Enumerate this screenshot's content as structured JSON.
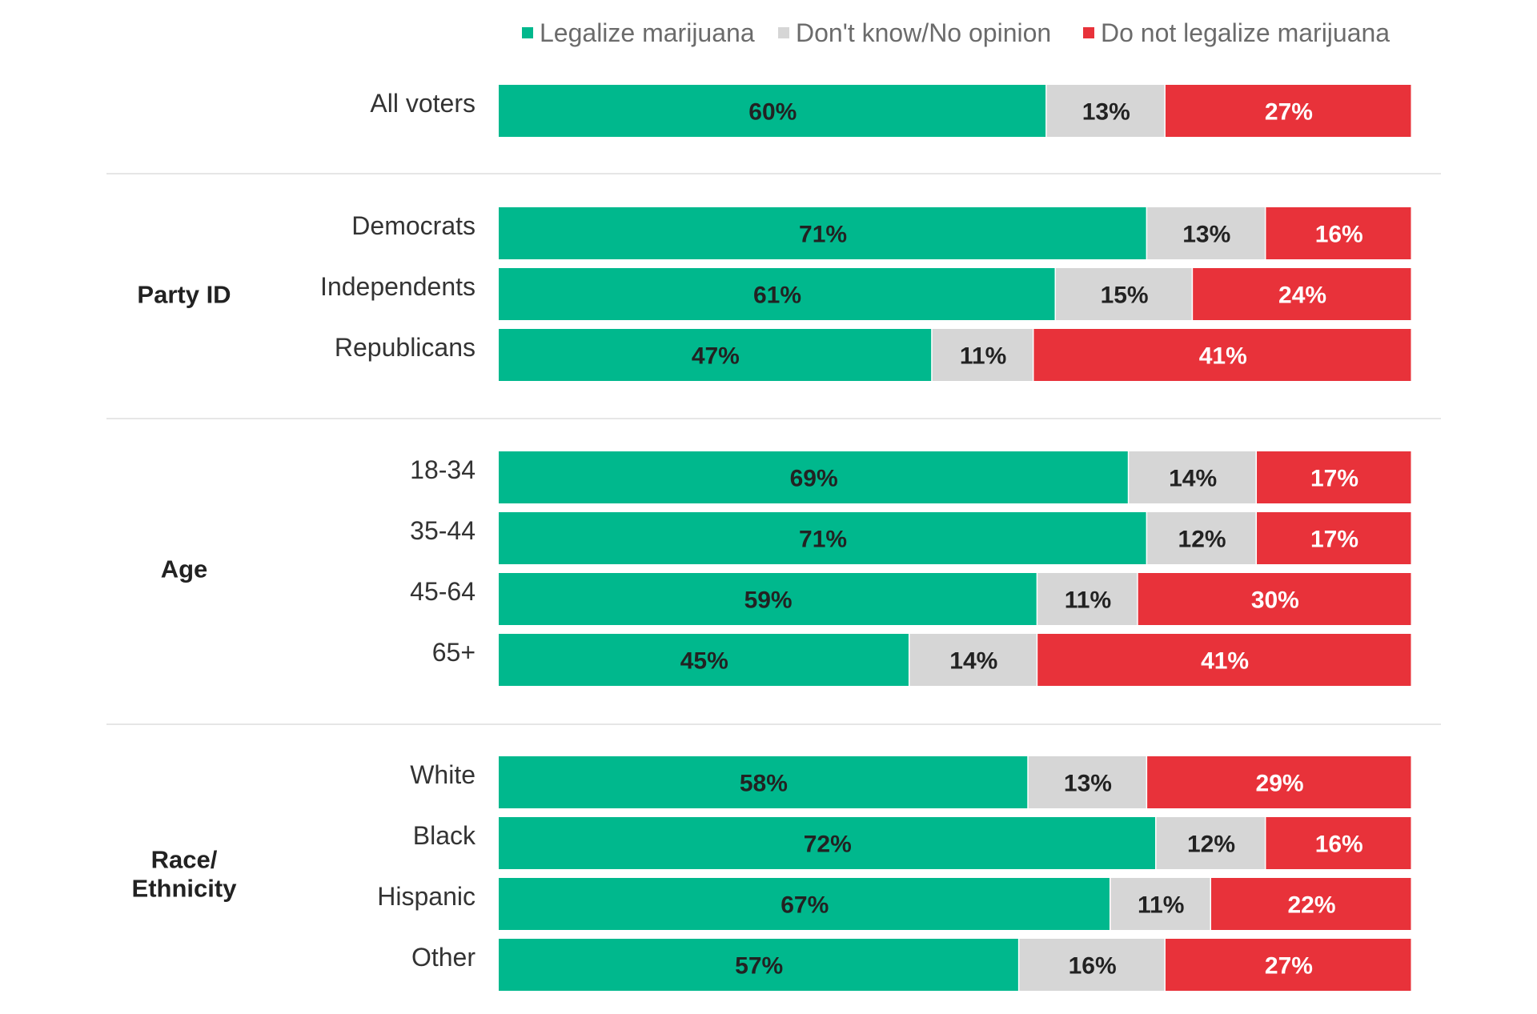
{
  "colors": {
    "legalize": "#00b88d",
    "dont_know": "#d6d6d6",
    "not_legalize": "#e8323a",
    "separator": "#dddddd",
    "label_dark": "#222222",
    "label_light": "#ffffff"
  },
  "chart_data": {
    "type": "bar",
    "orientation": "horizontal",
    "stacked": true,
    "percent_stacked": true,
    "xlim": [
      0,
      100
    ],
    "legend": {
      "placement": "top",
      "entries": [
        "Legalize marijuana",
        "Don't know/No opinion",
        "Do not legalize marijuana"
      ]
    },
    "series": [
      {
        "name": "Legalize marijuana",
        "color_key": "legalize"
      },
      {
        "name": "Don't know/No opinion",
        "color_key": "dont_know"
      },
      {
        "name": "Do not legalize marijuana",
        "color_key": "not_legalize"
      }
    ],
    "groups": [
      {
        "label": "",
        "rows": [
          {
            "label": "All voters",
            "values": [
              60,
              13,
              27
            ],
            "labels": [
              "60%",
              "13%",
              "27%"
            ]
          }
        ]
      },
      {
        "label": "Party ID",
        "rows": [
          {
            "label": "Democrats",
            "values": [
              71,
              13,
              16
            ],
            "labels": [
              "71%",
              "13%",
              "16%"
            ]
          },
          {
            "label": "Independents",
            "values": [
              61,
              15,
              24
            ],
            "labels": [
              "61%",
              "15%",
              "24%"
            ]
          },
          {
            "label": "Republicans",
            "values": [
              47,
              11,
              41
            ],
            "labels": [
              "47%",
              "11%",
              "41%"
            ]
          }
        ]
      },
      {
        "label": "Age",
        "rows": [
          {
            "label": "18-34",
            "values": [
              69,
              14,
              17
            ],
            "labels": [
              "69%",
              "14%",
              "17%"
            ]
          },
          {
            "label": "35-44",
            "values": [
              71,
              12,
              17
            ],
            "labels": [
              "71%",
              "12%",
              "17%"
            ]
          },
          {
            "label": "45-64",
            "values": [
              59,
              11,
              30
            ],
            "labels": [
              "59%",
              "11%",
              "30%"
            ]
          },
          {
            "label": "65+",
            "values": [
              45,
              14,
              41
            ],
            "labels": [
              "45%",
              "14%",
              "41%"
            ]
          }
        ]
      },
      {
        "label": "Race/\nEthnicity",
        "rows": [
          {
            "label": "White",
            "values": [
              58,
              13,
              29
            ],
            "labels": [
              "58%",
              "13%",
              "29%"
            ]
          },
          {
            "label": "Black",
            "values": [
              72,
              12,
              16
            ],
            "labels": [
              "72%",
              "12%",
              "16%"
            ]
          },
          {
            "label": "Hispanic",
            "values": [
              67,
              11,
              22
            ],
            "labels": [
              "67%",
              "11%",
              "22%"
            ]
          },
          {
            "label": "Other",
            "values": [
              57,
              16,
              27
            ],
            "labels": [
              "57%",
              "16%",
              "27%"
            ]
          }
        ]
      }
    ]
  }
}
